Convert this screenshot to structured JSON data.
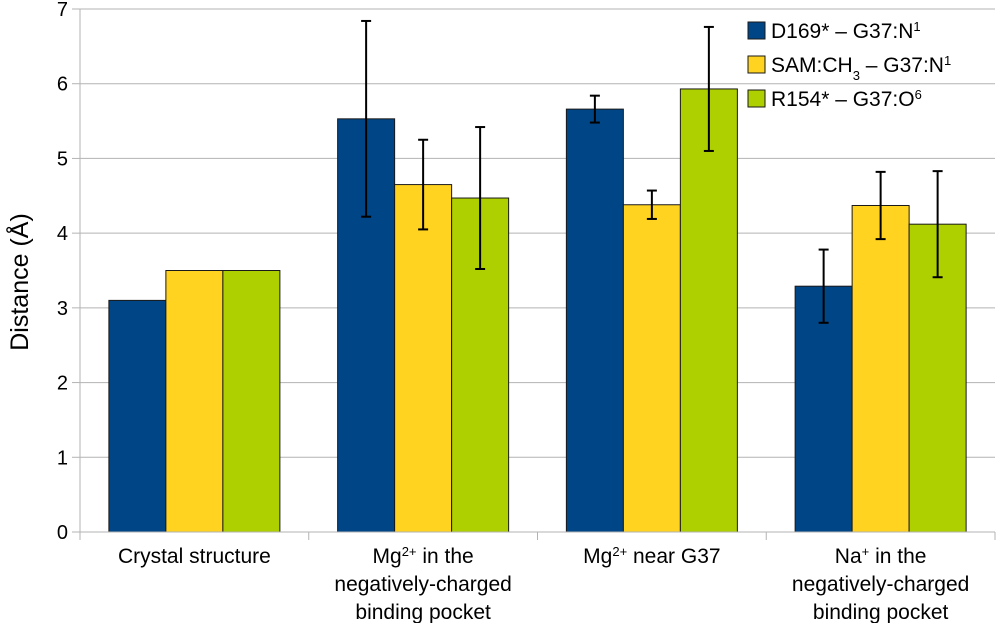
{
  "chart_data": {
    "type": "bar",
    "ylabel": "Distance (Å)",
    "xlabel": "",
    "ylim": [
      0,
      7
    ],
    "yticks": [
      0,
      1,
      2,
      3,
      4,
      5,
      6,
      7
    ],
    "grid": "horizontal",
    "legend_position": "top-right",
    "categories": [
      {
        "lines": [
          [
            {
              "t": "Crystal structure"
            }
          ]
        ]
      },
      {
        "lines": [
          [
            {
              "t": "Mg"
            },
            {
              "t": "2+",
              "sup": true
            },
            {
              "t": " in the"
            }
          ],
          [
            {
              "t": "negatively-charged"
            }
          ],
          [
            {
              "t": "binding pocket"
            }
          ]
        ]
      },
      {
        "lines": [
          [
            {
              "t": "Mg"
            },
            {
              "t": "2+",
              "sup": true
            },
            {
              "t": " near G37"
            }
          ]
        ]
      },
      {
        "lines": [
          [
            {
              "t": "Na"
            },
            {
              "t": "+",
              "sup": true
            },
            {
              "t": " in the"
            }
          ],
          [
            {
              "t": "negatively-charged"
            }
          ],
          [
            {
              "t": "binding pocket"
            }
          ]
        ]
      }
    ],
    "series": [
      {
        "label_parts": [
          {
            "t": "D169* – G37:N"
          },
          {
            "t": "1",
            "sup": true
          }
        ],
        "color": "#004586",
        "values": [
          3.1,
          5.53,
          5.66,
          3.29
        ],
        "errors": [
          null,
          1.31,
          0.18,
          0.49
        ]
      },
      {
        "label_parts": [
          {
            "t": "SAM:CH"
          },
          {
            "t": "3",
            "sub": true
          },
          {
            "t": " – G37:N"
          },
          {
            "t": "1",
            "sup": true
          }
        ],
        "color": "#FFD320",
        "values": [
          3.5,
          4.65,
          4.38,
          4.37
        ],
        "errors": [
          null,
          0.6,
          0.19,
          0.45
        ]
      },
      {
        "label_parts": [
          {
            "t": "R154* – G37:O"
          },
          {
            "t": "6",
            "sup": true
          }
        ],
        "color": "#AECF00",
        "values": [
          3.5,
          4.47,
          5.93,
          4.12
        ],
        "errors": [
          null,
          0.95,
          0.83,
          0.71
        ]
      }
    ]
  }
}
